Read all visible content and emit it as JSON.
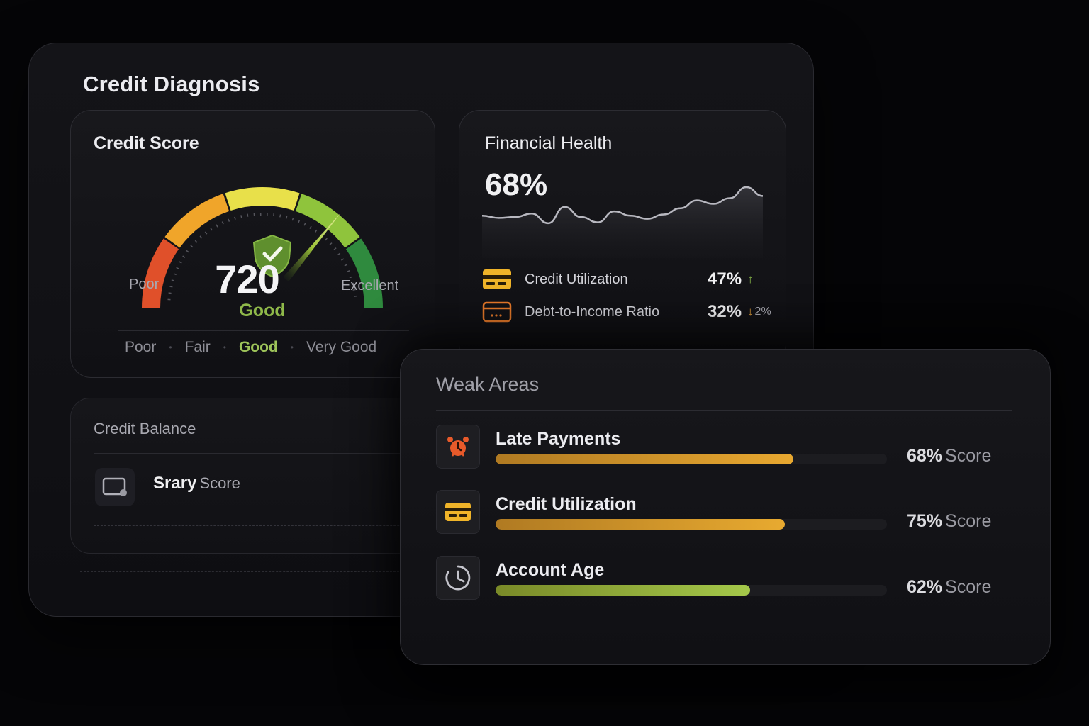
{
  "app": {
    "title": "Credit Diagnosis"
  },
  "credit_score": {
    "title": "Credit Score",
    "value": "720",
    "rating": "Good",
    "gauge_fraction": 0.72,
    "min_label": "Poor",
    "max_label": "Excellent",
    "scale": [
      "Poor",
      "Fair",
      "Good",
      "Very Good"
    ],
    "active_scale": "Good",
    "colors": {
      "poor": "#e0502a",
      "fair": "#f0a52a",
      "good": "#e8e04a",
      "very_good": "#8fc43c",
      "excellent": "#2f8a3e",
      "shield": "#6a9a3a"
    }
  },
  "financial_health": {
    "title": "Financial Health",
    "value": "68%",
    "trend": [
      0.35,
      0.3,
      0.32,
      0.4,
      0.18,
      0.55,
      0.32,
      0.2,
      0.45,
      0.35,
      0.28,
      0.38,
      0.52,
      0.7,
      0.62,
      0.75,
      1.0,
      0.8
    ],
    "metrics": [
      {
        "label": "Credit Utilization",
        "value": "47%",
        "trend": "↑",
        "note": "",
        "icon": "credit-card-icon",
        "color": "#f0b429"
      },
      {
        "label": "Debt-to-Income Ratio",
        "value": "32%",
        "trend": "↓",
        "note": "2%",
        "icon": "card-outline-icon",
        "color": "#e87a2a"
      }
    ]
  },
  "credit_balance": {
    "title": "Credit Balance",
    "item_strong": "Srary",
    "item_soft": "Score"
  },
  "weak_areas": {
    "title": "Weak Areas",
    "items": [
      {
        "label": "Late Payments",
        "pct": "68%",
        "score_label": "Score",
        "fill": 0.76,
        "icon": "alarm-clock-icon",
        "color_from": "#b07a22",
        "color_to": "#e8a830"
      },
      {
        "label": "Credit Utilization",
        "pct": "75%",
        "score_label": "Score",
        "fill": 0.74,
        "icon": "credit-card-icon",
        "color_from": "#b07a22",
        "color_to": "#e8aa30"
      },
      {
        "label": "Account Age",
        "pct": "62%",
        "score_label": "Score",
        "fill": 0.65,
        "icon": "clock-icon",
        "color_from": "#7a8a28",
        "color_to": "#a4c84a"
      }
    ]
  }
}
